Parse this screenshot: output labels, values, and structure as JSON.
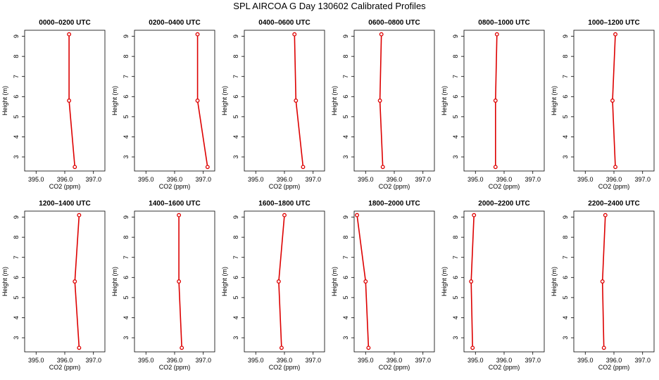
{
  "figure": {
    "title": "SPL AIRCOA G  Day 130602  Calibrated Profiles"
  },
  "chart_data": [
    {
      "type": "line",
      "title": "0000–0200 UTC",
      "xlabel": "CO2 (ppm)",
      "ylabel": "Height (m)",
      "xlim": [
        394.6,
        397.4
      ],
      "ylim": [
        2.3,
        9.3
      ],
      "xticks": [
        "395.0",
        "396.0",
        "397.0"
      ],
      "yticks": [
        "3",
        "4",
        "5",
        "6",
        "7",
        "8",
        "9"
      ],
      "series": [
        {
          "x": [
            396.35,
            396.15,
            396.15
          ],
          "y": [
            2.5,
            5.8,
            9.1
          ]
        }
      ]
    },
    {
      "type": "line",
      "title": "0200–0400 UTC",
      "xlabel": "CO2 (ppm)",
      "ylabel": "Height (m)",
      "xlim": [
        394.6,
        397.4
      ],
      "ylim": [
        2.3,
        9.3
      ],
      "xticks": [
        "395.0",
        "396.0",
        "397.0"
      ],
      "yticks": [
        "3",
        "4",
        "5",
        "6",
        "7",
        "8",
        "9"
      ],
      "series": [
        {
          "x": [
            397.15,
            396.8,
            396.8
          ],
          "y": [
            2.5,
            5.8,
            9.1
          ]
        }
      ]
    },
    {
      "type": "line",
      "title": "0400–0600 UTC",
      "xlabel": "CO2 (ppm)",
      "ylabel": "Height (m)",
      "xlim": [
        394.6,
        397.4
      ],
      "ylim": [
        2.3,
        9.3
      ],
      "xticks": [
        "395.0",
        "396.0",
        "397.0"
      ],
      "yticks": [
        "3",
        "4",
        "5",
        "6",
        "7",
        "8",
        "9"
      ],
      "series": [
        {
          "x": [
            396.65,
            396.4,
            396.35
          ],
          "y": [
            2.5,
            5.8,
            9.1
          ]
        }
      ]
    },
    {
      "type": "line",
      "title": "0600–0800 UTC",
      "xlabel": "CO2 (ppm)",
      "ylabel": "Height (m)",
      "xlim": [
        394.6,
        397.4
      ],
      "ylim": [
        2.3,
        9.3
      ],
      "xticks": [
        "395.0",
        "396.0",
        "397.0"
      ],
      "yticks": [
        "3",
        "4",
        "5",
        "6",
        "7",
        "8",
        "9"
      ],
      "series": [
        {
          "x": [
            395.6,
            395.5,
            395.55
          ],
          "y": [
            2.5,
            5.8,
            9.1
          ]
        }
      ]
    },
    {
      "type": "line",
      "title": "0800–1000 UTC",
      "xlabel": "CO2 (ppm)",
      "ylabel": "Height (m)",
      "xlim": [
        394.6,
        397.4
      ],
      "ylim": [
        2.3,
        9.3
      ],
      "xticks": [
        "395.0",
        "396.0",
        "397.0"
      ],
      "yticks": [
        "3",
        "4",
        "5",
        "6",
        "7",
        "8",
        "9"
      ],
      "series": [
        {
          "x": [
            395.7,
            395.7,
            395.75
          ],
          "y": [
            2.5,
            5.8,
            9.1
          ]
        }
      ]
    },
    {
      "type": "line",
      "title": "1000–1200 UTC",
      "xlabel": "CO2 (ppm)",
      "ylabel": "Height (m)",
      "xlim": [
        394.6,
        397.4
      ],
      "ylim": [
        2.3,
        9.3
      ],
      "xticks": [
        "395.0",
        "396.0",
        "397.0"
      ],
      "yticks": [
        "3",
        "4",
        "5",
        "6",
        "7",
        "8",
        "9"
      ],
      "series": [
        {
          "x": [
            396.05,
            395.95,
            396.05
          ],
          "y": [
            2.5,
            5.8,
            9.1
          ]
        }
      ]
    },
    {
      "type": "line",
      "title": "1200–1400 UTC",
      "xlabel": "CO2 (ppm)",
      "ylabel": "Height (m)",
      "xlim": [
        394.6,
        397.4
      ],
      "ylim": [
        2.3,
        9.3
      ],
      "xticks": [
        "395.0",
        "396.0",
        "397.0"
      ],
      "yticks": [
        "3",
        "4",
        "5",
        "6",
        "7",
        "8",
        "9"
      ],
      "series": [
        {
          "x": [
            396.5,
            396.35,
            396.5
          ],
          "y": [
            2.5,
            5.8,
            9.1
          ]
        }
      ]
    },
    {
      "type": "line",
      "title": "1400–1600 UTC",
      "xlabel": "CO2 (ppm)",
      "ylabel": "Height (m)",
      "xlim": [
        394.6,
        397.4
      ],
      "ylim": [
        2.3,
        9.3
      ],
      "xticks": [
        "395.0",
        "396.0",
        "397.0"
      ],
      "yticks": [
        "3",
        "4",
        "5",
        "6",
        "7",
        "8",
        "9"
      ],
      "series": [
        {
          "x": [
            396.25,
            396.15,
            396.15
          ],
          "y": [
            2.5,
            5.8,
            9.1
          ]
        }
      ]
    },
    {
      "type": "line",
      "title": "1600–1800 UTC",
      "xlabel": "CO2 (ppm)",
      "ylabel": "Height (m)",
      "xlim": [
        394.6,
        397.4
      ],
      "ylim": [
        2.3,
        9.3
      ],
      "xticks": [
        "395.0",
        "396.0",
        "397.0"
      ],
      "yticks": [
        "3",
        "4",
        "5",
        "6",
        "7",
        "8",
        "9"
      ],
      "series": [
        {
          "x": [
            395.9,
            395.8,
            396.0
          ],
          "y": [
            2.5,
            5.8,
            9.1
          ]
        }
      ]
    },
    {
      "type": "line",
      "title": "1800–2000 UTC",
      "xlabel": "CO2 (ppm)",
      "ylabel": "Height (m)",
      "xlim": [
        394.6,
        397.4
      ],
      "ylim": [
        2.3,
        9.3
      ],
      "xticks": [
        "395.0",
        "396.0",
        "397.0"
      ],
      "yticks": [
        "3",
        "4",
        "5",
        "6",
        "7",
        "8",
        "9"
      ],
      "series": [
        {
          "x": [
            395.1,
            395.0,
            394.7
          ],
          "y": [
            2.5,
            5.8,
            9.1
          ]
        }
      ]
    },
    {
      "type": "line",
      "title": "2000–2200 UTC",
      "xlabel": "CO2 (ppm)",
      "ylabel": "Height (m)",
      "xlim": [
        394.6,
        397.4
      ],
      "ylim": [
        2.3,
        9.3
      ],
      "xticks": [
        "395.0",
        "396.0",
        "397.0"
      ],
      "yticks": [
        "3",
        "4",
        "5",
        "6",
        "7",
        "8",
        "9"
      ],
      "series": [
        {
          "x": [
            394.9,
            394.85,
            394.95
          ],
          "y": [
            2.5,
            5.8,
            9.1
          ]
        }
      ]
    },
    {
      "type": "line",
      "title": "2200–2400 UTC",
      "xlabel": "CO2 (ppm)",
      "ylabel": "Height (m)",
      "xlim": [
        394.6,
        397.4
      ],
      "ylim": [
        2.3,
        9.3
      ],
      "xticks": [
        "395.0",
        "396.0",
        "397.0"
      ],
      "yticks": [
        "3",
        "4",
        "5",
        "6",
        "7",
        "8",
        "9"
      ],
      "series": [
        {
          "x": [
            395.65,
            395.6,
            395.7
          ],
          "y": [
            2.5,
            5.8,
            9.1
          ]
        }
      ]
    }
  ]
}
